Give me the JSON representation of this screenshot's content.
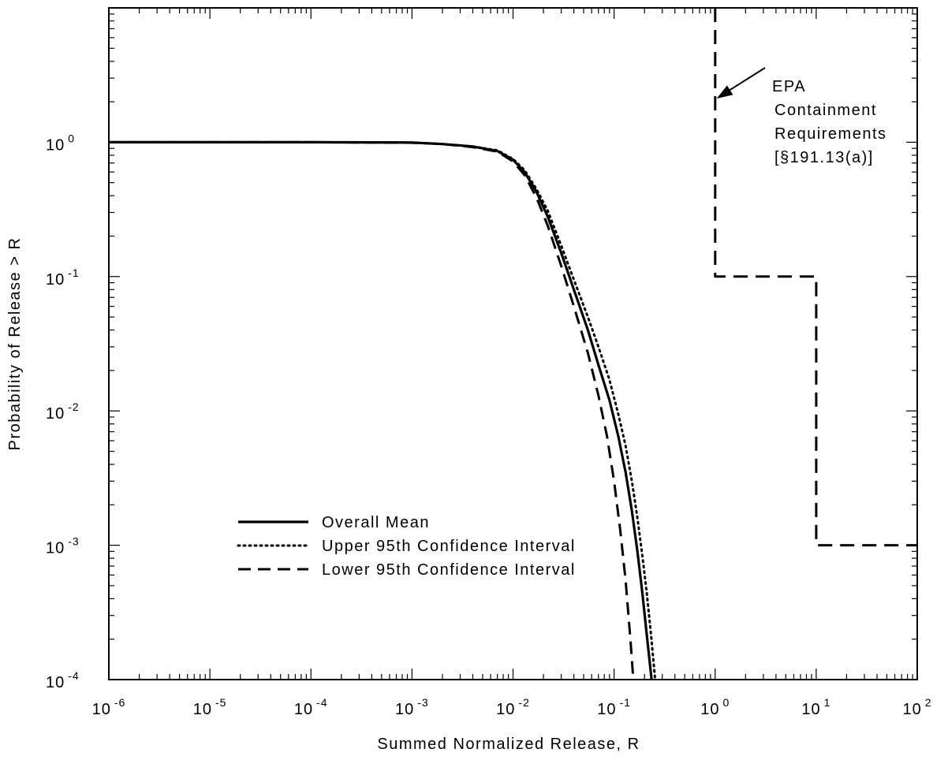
{
  "chart_data": {
    "type": "line",
    "xlabel": "Summed Normalized Release, R",
    "ylabel": "Probability of Release > R",
    "xscale": "log",
    "yscale": "log",
    "xlim": [
      1e-06,
      100
    ],
    "ylim": [
      0.0001,
      10
    ],
    "x_ticks": [
      {
        "base": "10",
        "exp": "-6"
      },
      {
        "base": "10",
        "exp": "-5"
      },
      {
        "base": "10",
        "exp": "-4"
      },
      {
        "base": "10",
        "exp": "-3"
      },
      {
        "base": "10",
        "exp": "-2"
      },
      {
        "base": "10",
        "exp": "-1"
      },
      {
        "base": "10",
        "exp": "0"
      },
      {
        "base": "10",
        "exp": "1"
      },
      {
        "base": "10",
        "exp": "2"
      }
    ],
    "y_ticks": [
      {
        "base": "10",
        "exp": "-4"
      },
      {
        "base": "10",
        "exp": "-3"
      },
      {
        "base": "10",
        "exp": "-2"
      },
      {
        "base": "10",
        "exp": "-1"
      },
      {
        "base": "10",
        "exp": "0"
      }
    ],
    "legend_position": "lower-left",
    "series": [
      {
        "name": "Overall Mean",
        "style": "solid",
        "x": [
          1e-06,
          1e-05,
          0.0001,
          0.001,
          0.002,
          0.004,
          0.007,
          0.01,
          0.013,
          0.017,
          0.022,
          0.03,
          0.04,
          0.055,
          0.07,
          0.09,
          0.11,
          0.13,
          0.15,
          0.17,
          0.19,
          0.21,
          0.235
        ],
        "y": [
          1.0,
          1.0,
          1.0,
          0.995,
          0.97,
          0.93,
          0.86,
          0.74,
          0.6,
          0.43,
          0.28,
          0.15,
          0.08,
          0.04,
          0.022,
          0.012,
          0.0065,
          0.0035,
          0.0018,
          0.0009,
          0.00045,
          0.00022,
          0.0001
        ]
      },
      {
        "name": "Upper 95th Confidence Interval",
        "style": "dotted",
        "x": [
          1e-06,
          1e-05,
          0.0001,
          0.001,
          0.002,
          0.004,
          0.007,
          0.01,
          0.013,
          0.017,
          0.022,
          0.03,
          0.04,
          0.055,
          0.07,
          0.09,
          0.11,
          0.13,
          0.15,
          0.17,
          0.19,
          0.21,
          0.23,
          0.255
        ],
        "y": [
          1.0,
          1.0,
          1.0,
          0.995,
          0.97,
          0.93,
          0.87,
          0.75,
          0.62,
          0.45,
          0.31,
          0.17,
          0.095,
          0.05,
          0.03,
          0.017,
          0.0095,
          0.0055,
          0.003,
          0.0016,
          0.00085,
          0.00045,
          0.00023,
          0.0001
        ]
      },
      {
        "name": "Lower 95th Confidence Interval",
        "style": "dashed",
        "x": [
          1e-06,
          1e-05,
          0.0001,
          0.001,
          0.002,
          0.004,
          0.007,
          0.01,
          0.013,
          0.017,
          0.022,
          0.03,
          0.04,
          0.055,
          0.07,
          0.085,
          0.1,
          0.115,
          0.13,
          0.145,
          0.155
        ],
        "y": [
          1.0,
          1.0,
          1.0,
          0.99,
          0.97,
          0.92,
          0.85,
          0.72,
          0.57,
          0.39,
          0.24,
          0.12,
          0.06,
          0.027,
          0.013,
          0.0065,
          0.003,
          0.0013,
          0.00055,
          0.0002,
          0.0001
        ]
      },
      {
        "name": "EPA Containment Requirements",
        "style": "dashed-thick",
        "x": [
          1,
          1,
          10,
          10,
          100
        ],
        "y": [
          10,
          0.1,
          0.1,
          0.001,
          0.001
        ]
      }
    ],
    "annotations": [
      {
        "lines": [
          "EPA",
          "Containment",
          "Requirements",
          "[§191.13(a)]"
        ],
        "arrow_to": {
          "x": 1,
          "y": 2.2
        }
      }
    ]
  }
}
